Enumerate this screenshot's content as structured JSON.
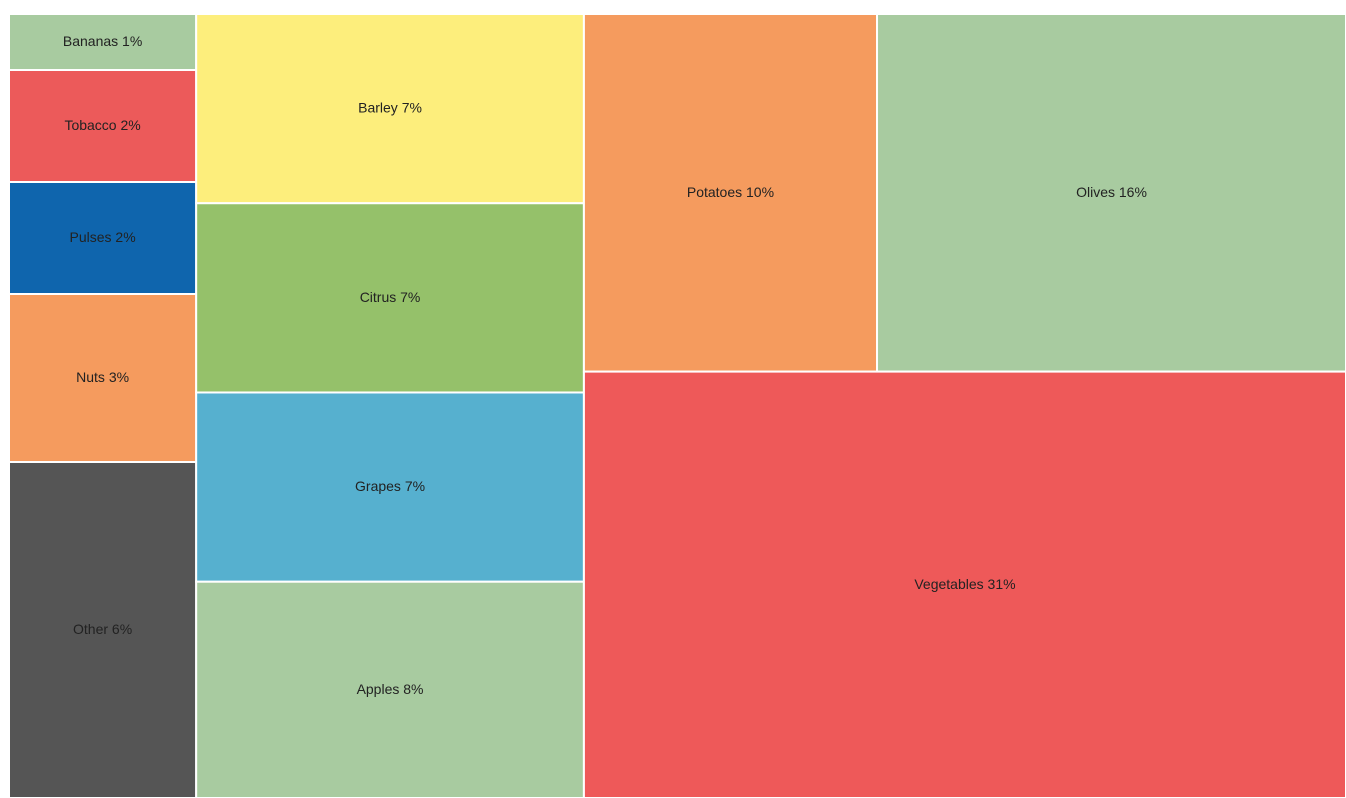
{
  "chart_data": {
    "type": "treemap",
    "categories": [
      "Bananas",
      "Tobacco",
      "Pulses",
      "Nuts",
      "Other",
      "Barley",
      "Citrus",
      "Grapes",
      "Apples",
      "Potatoes",
      "Olives",
      "Vegetables"
    ],
    "values": [
      1,
      2,
      2,
      3,
      6,
      7,
      7,
      7,
      8,
      10,
      16,
      31
    ],
    "value_labels": [
      "1%",
      "2%",
      "2%",
      "3%",
      "6%",
      "7%",
      "7%",
      "7%",
      "8%",
      "10%",
      "16%",
      "31%"
    ],
    "colors": [
      "#a8cba0",
      "#ec5a5a",
      "#0f65ad",
      "#f59b5e",
      "#555555",
      "#fdee7c",
      "#95c16a",
      "#56b0cf",
      "#a8cba0",
      "#f59b5e",
      "#a8cba0",
      "#ee5959"
    ]
  }
}
